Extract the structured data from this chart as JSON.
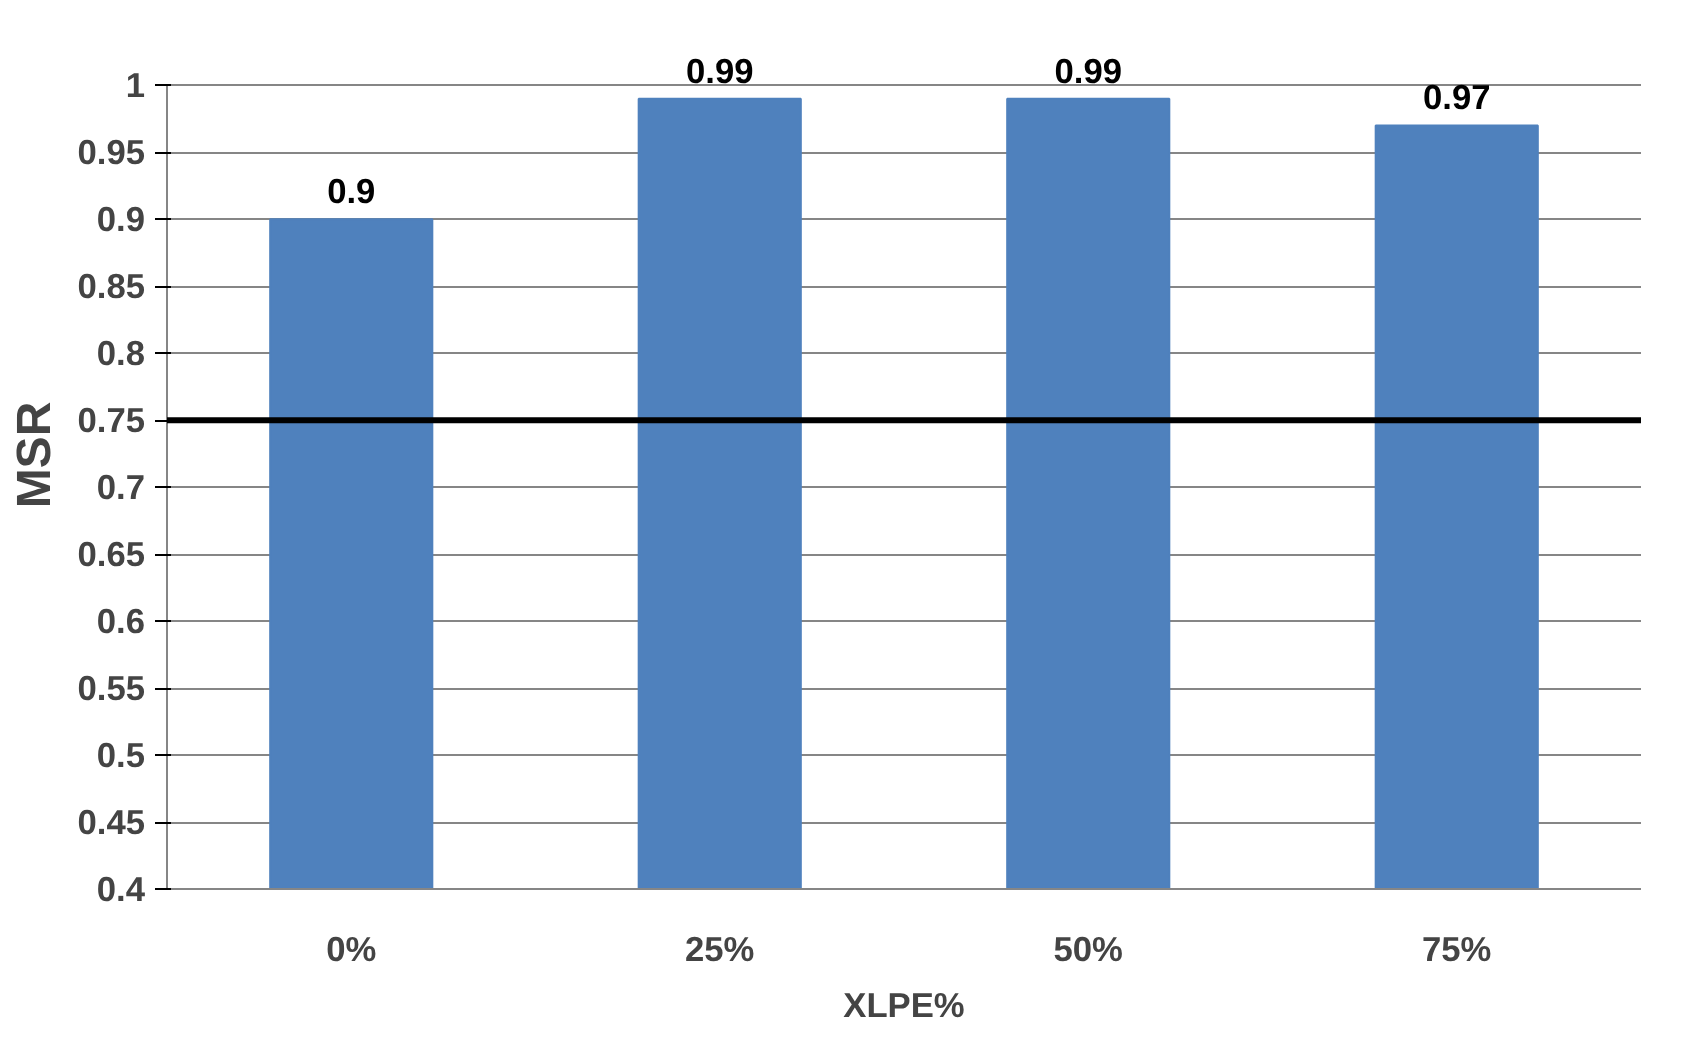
{
  "chart_data": {
    "type": "bar",
    "xlabel": "XLPE%",
    "ylabel": "MSR",
    "categories": [
      "0%",
      "25%",
      "50%",
      "75%"
    ],
    "values": [
      0.9,
      0.99,
      0.99,
      0.97
    ],
    "color": "#4f81bd",
    "ylim": [
      0.4,
      1
    ],
    "yticks": [
      0.4,
      0.45,
      0.5,
      0.55,
      0.6,
      0.65,
      0.7,
      0.75,
      0.8,
      0.85,
      0.9,
      0.95,
      1
    ],
    "grid": "y",
    "data_labels": true,
    "ref_lines": [
      {
        "axis": "y",
        "value": 0.75,
        "color": "#000000"
      }
    ]
  }
}
